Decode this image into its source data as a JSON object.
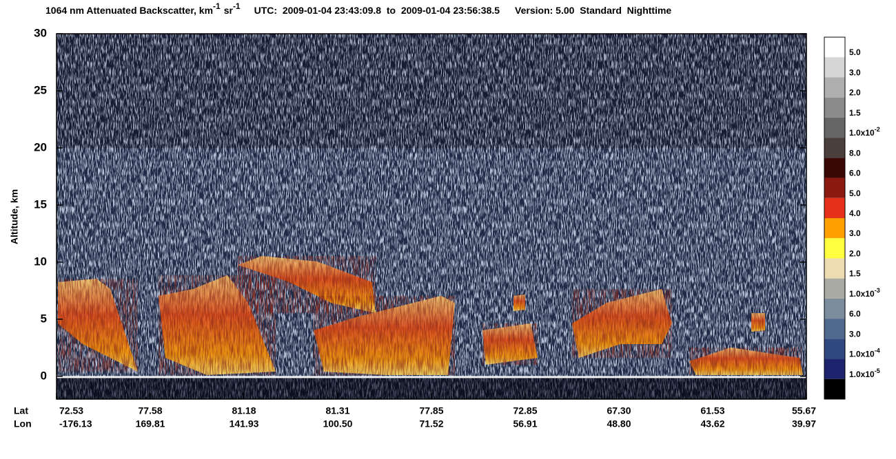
{
  "chart_data": {
    "type": "heatmap",
    "title": {
      "quantity": "1064 nm Attenuated Backscatter, km",
      "unit1_exp": "-1",
      "unit2": "sr",
      "unit2_exp": "-1",
      "utc": "UTC:  2009-01-04 23:43:09.8  to  2009-01-04 23:56:38.5",
      "version": "Version: 5.00  Standard  Nighttime"
    },
    "y_label": "Altitude, km",
    "ylim": [
      -2,
      30
    ],
    "yticks": [
      0,
      5,
      10,
      15,
      20,
      25,
      30
    ],
    "x_row_labels": [
      "Lat",
      "Lon"
    ],
    "lat": [
      "72.53",
      "77.58",
      "81.18",
      "81.31",
      "77.85",
      "72.85",
      "67.30",
      "61.53",
      "55.67"
    ],
    "lon": [
      "-176.13",
      "169.81",
      "141.93",
      "100.50",
      "71.52",
      "56.91",
      "48.80",
      "43.62",
      "39.97"
    ],
    "colorbar_colors": [
      "#ffffff",
      "#d6d6d6",
      "#afafaf",
      "#8b8b8b",
      "#666666",
      "#4a3f3b",
      "#3a0906",
      "#8a1a10",
      "#e8311a",
      "#ffa000",
      "#ffff40",
      "#ecdcb0",
      "#a9aba2",
      "#7b8c9c",
      "#51698c",
      "#2f4880",
      "#1e236e",
      "#000000"
    ],
    "colorbar_labels": [
      {
        "text": "5.0"
      },
      {
        "text": "3.0"
      },
      {
        "text": "2.0"
      },
      {
        "text": "1.5"
      },
      {
        "text": "1.0x10",
        "exp": "-2"
      },
      {
        "text": "8.0"
      },
      {
        "text": "6.0"
      },
      {
        "text": "5.0"
      },
      {
        "text": "4.0"
      },
      {
        "text": "3.0"
      },
      {
        "text": "2.0"
      },
      {
        "text": "1.5"
      },
      {
        "text": "1.0x10",
        "exp": "-3"
      },
      {
        "text": "6.0"
      },
      {
        "text": "3.0"
      },
      {
        "text": "1.0x10",
        "exp": "-4"
      },
      {
        "text": "1.0x10",
        "exp": "-5"
      }
    ]
  }
}
